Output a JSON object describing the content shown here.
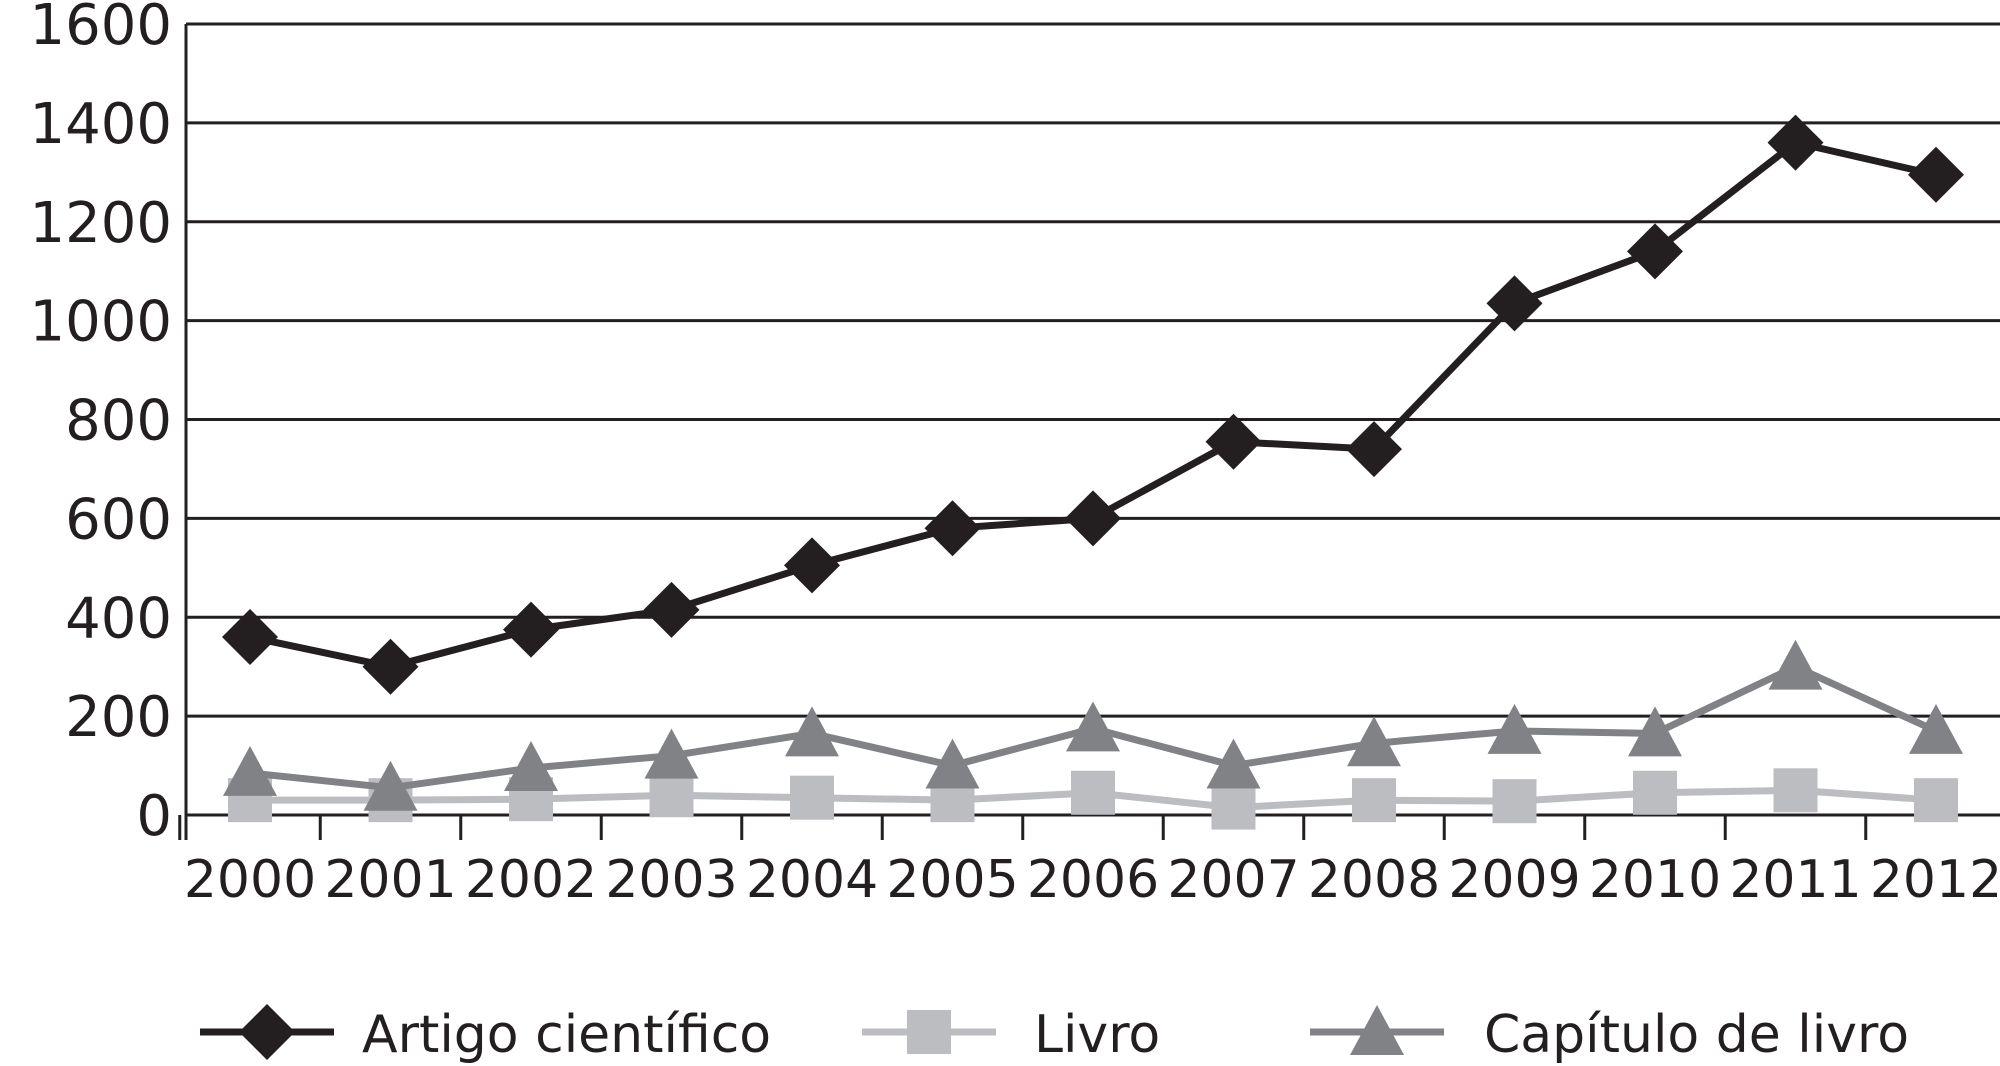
{
  "chart_data": {
    "type": "line",
    "title": "",
    "xlabel": "",
    "ylabel": "",
    "categories": [
      "2000",
      "2001",
      "2002",
      "2003",
      "2004",
      "2005",
      "2006",
      "2007",
      "2008",
      "2009",
      "2010",
      "2011",
      "2012"
    ],
    "ylim": [
      0,
      1600
    ],
    "yticks": [
      "0",
      "200",
      "400",
      "600",
      "800",
      "1000",
      "1200",
      "1400",
      "1600"
    ],
    "grid": true,
    "legend_position": "bottom",
    "series": [
      {
        "name": "Artigo científico",
        "marker": "diamond",
        "color": "#231f20",
        "values": [
          360,
          300,
          375,
          415,
          505,
          580,
          600,
          755,
          740,
          1035,
          1140,
          1360,
          1295
        ]
      },
      {
        "name": "Livro",
        "marker": "square",
        "color": "#bcbdc0",
        "values": [
          30,
          30,
          32,
          40,
          35,
          30,
          45,
          15,
          30,
          28,
          45,
          50,
          30
        ]
      },
      {
        "name": "Capítulo de livro",
        "marker": "triangle",
        "color": "#808285",
        "values": [
          85,
          55,
          95,
          120,
          165,
          100,
          175,
          100,
          145,
          170,
          165,
          300,
          170
        ]
      }
    ]
  }
}
